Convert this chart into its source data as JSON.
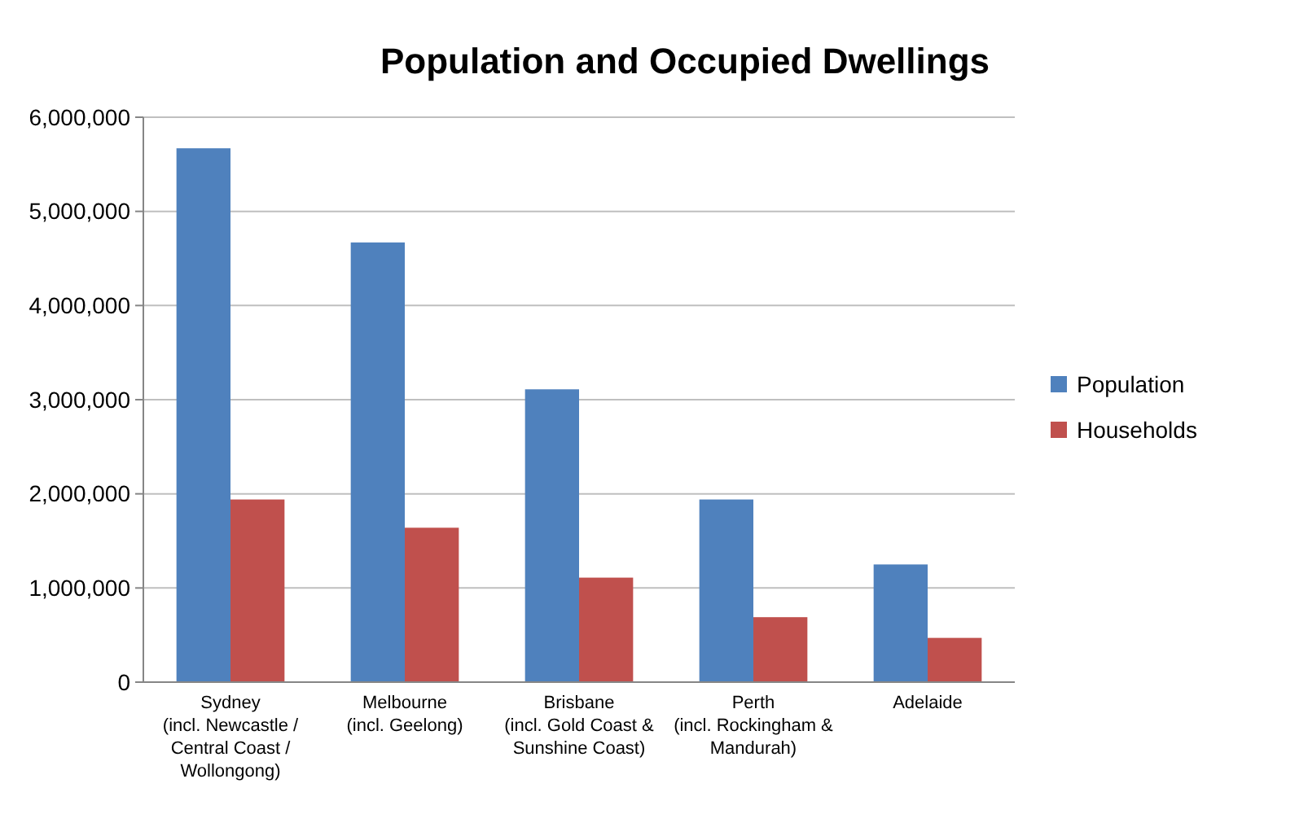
{
  "chart_data": {
    "type": "bar",
    "title": "Population and Occupied Dwellings",
    "categories": [
      "Sydney\n(incl. Newcastle /\nCentral Coast /\nWollongong)",
      "Melbourne\n(incl. Geelong)",
      "Brisbane\n(incl. Gold Coast &\nSunshine Coast)",
      "Perth\n(incl. Rockingham &\nMandurah)",
      "Adelaide"
    ],
    "series": [
      {
        "name": "Population",
        "color": "#4f81bd",
        "values": [
          5670000,
          4670000,
          3110000,
          1940000,
          1250000
        ]
      },
      {
        "name": "Households",
        "color": "#c0504d",
        "values": [
          1940000,
          1640000,
          1110000,
          690000,
          470000
        ]
      }
    ],
    "ylim": [
      0,
      6000000
    ],
    "yticks": [
      {
        "value": 0,
        "label": "0"
      },
      {
        "value": 1000000,
        "label": "1,000,000"
      },
      {
        "value": 2000000,
        "label": "2,000,000"
      },
      {
        "value": 3000000,
        "label": "3,000,000"
      },
      {
        "value": 4000000,
        "label": "4,000,000"
      },
      {
        "value": 5000000,
        "label": "5,000,000"
      },
      {
        "value": 6000000,
        "label": "6,000,000"
      }
    ],
    "grid": "y",
    "legend": "right"
  }
}
